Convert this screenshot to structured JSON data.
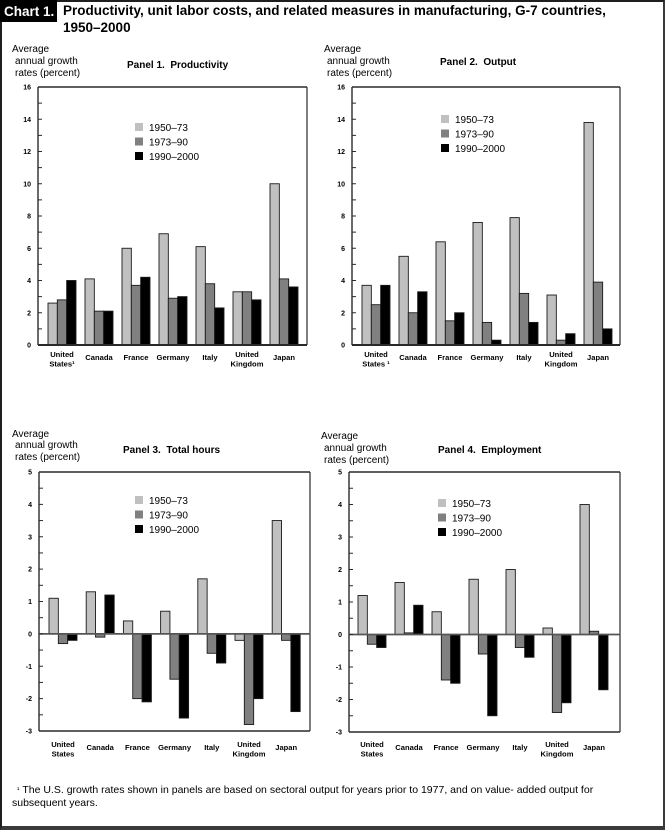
{
  "title": {
    "label": "Chart 1.",
    "text": "Productivity, unit labor costs, and related measures in manufacturing, G-7 countries, 1950–2000"
  },
  "footnote": {
    "marker": "¹",
    "text": "The U.S. growth rates shown in panels are based on sectoral output for years prior to 1977, and on value- added output for subsequent years."
  },
  "chart_data": [
    {
      "type": "bar",
      "title": "Panel 1.  Productivity",
      "xlabel": "",
      "ylabel": "Average annual growth rates (percent)",
      "ylabel_lines": [
        "Average",
        "annual growth",
        "rates (percent)"
      ],
      "categories": [
        "United States¹",
        "Canada",
        "France",
        "Germany",
        "Italy",
        "United Kingdom",
        "Japan"
      ],
      "category_lines": [
        [
          "United",
          "States¹"
        ],
        [
          "Canada"
        ],
        [
          "France"
        ],
        [
          "Germany"
        ],
        [
          "Italy"
        ],
        [
          "United",
          "Kingdom"
        ],
        [
          "Japan"
        ]
      ],
      "series": [
        {
          "name": "1950–73",
          "color": "#c0c0c0",
          "values": [
            2.6,
            4.1,
            6.0,
            6.9,
            6.1,
            3.3,
            10.0
          ]
        },
        {
          "name": "1973–90",
          "color": "#808080",
          "values": [
            2.8,
            2.1,
            3.7,
            2.9,
            3.8,
            3.3,
            4.1
          ]
        },
        {
          "name": "1990–2000",
          "color": "#000000",
          "values": [
            4.0,
            2.1,
            4.2,
            3.0,
            2.3,
            2.8,
            3.6
          ]
        }
      ],
      "ylim": [
        0,
        16
      ],
      "yticks": [
        0,
        2,
        4,
        6,
        8,
        10,
        12,
        14,
        16
      ],
      "grid": false,
      "legend": "upper-center"
    },
    {
      "type": "bar",
      "title": "Panel 2.  Output",
      "xlabel": "",
      "ylabel": "Average annual growth rates (percent)",
      "ylabel_lines": [
        "Average",
        "annual growth",
        "rates (percent)"
      ],
      "categories": [
        "United States¹",
        "Canada",
        "France",
        "Germany",
        "Italy",
        "United Kingdom",
        "Japan"
      ],
      "category_lines": [
        [
          "United",
          "States ¹"
        ],
        [
          "Canada"
        ],
        [
          "France"
        ],
        [
          "Germany"
        ],
        [
          "Italy"
        ],
        [
          "United",
          "Kingdom"
        ],
        [
          "Japan"
        ]
      ],
      "series": [
        {
          "name": "1950–73",
          "color": "#c0c0c0",
          "values": [
            3.7,
            5.5,
            6.4,
            7.6,
            7.9,
            3.1,
            13.8
          ]
        },
        {
          "name": "1973–90",
          "color": "#808080",
          "values": [
            2.5,
            2.0,
            1.5,
            1.4,
            3.2,
            0.3,
            3.9
          ]
        },
        {
          "name": "1990–2000",
          "color": "#000000",
          "values": [
            3.7,
            3.3,
            2.0,
            0.3,
            1.4,
            0.7,
            1.0
          ]
        }
      ],
      "ylim": [
        0,
        16
      ],
      "yticks": [
        0,
        2,
        4,
        6,
        8,
        10,
        12,
        14,
        16
      ],
      "grid": false,
      "legend": "upper-center"
    },
    {
      "type": "bar",
      "title": "Panel 3.  Total hours",
      "xlabel": "",
      "ylabel": "Average annual growth rates (percent)",
      "ylabel_lines": [
        "Average",
        "annual growth",
        "rates (percent)"
      ],
      "categories": [
        "United States",
        "Canada",
        "France",
        "Germany",
        "Italy",
        "United Kingdom",
        "Japan"
      ],
      "category_lines": [
        [
          "United",
          "States"
        ],
        [
          "Canada"
        ],
        [
          "France"
        ],
        [
          "Germany"
        ],
        [
          "Italy"
        ],
        [
          "United",
          "Kingdom"
        ],
        [
          "Japan"
        ]
      ],
      "series": [
        {
          "name": "1950–73",
          "color": "#c0c0c0",
          "values": [
            1.1,
            1.3,
            0.4,
            0.7,
            1.7,
            -0.2,
            3.5
          ]
        },
        {
          "name": "1973–90",
          "color": "#808080",
          "values": [
            -0.3,
            -0.1,
            -2.0,
            -1.4,
            -0.6,
            -2.8,
            -0.2
          ]
        },
        {
          "name": "1990–2000",
          "color": "#000000",
          "values": [
            -0.2,
            1.2,
            -2.1,
            -2.6,
            -0.9,
            -2.0,
            -2.4
          ]
        }
      ],
      "ylim": [
        -3,
        5
      ],
      "yticks": [
        -3,
        -2,
        -1,
        0,
        1,
        2,
        3,
        4,
        5
      ],
      "grid": false,
      "legend": "upper-center"
    },
    {
      "type": "bar",
      "title": "Panel 4.  Employment",
      "xlabel": "",
      "ylabel": "Average annual growth rates (percent)",
      "ylabel_lines": [
        "Average",
        "annual growth",
        "rates (percent)"
      ],
      "categories": [
        "United States",
        "Canada",
        "France",
        "Germany",
        "Italy",
        "United Kingdom",
        "Japan"
      ],
      "category_lines": [
        [
          "United",
          "States"
        ],
        [
          "Canada"
        ],
        [
          "France"
        ],
        [
          "Germany"
        ],
        [
          "Italy"
        ],
        [
          "United",
          "Kingdom"
        ],
        [
          "Japan"
        ]
      ],
      "series": [
        {
          "name": "1950–73",
          "color": "#c0c0c0",
          "values": [
            1.2,
            1.6,
            0.7,
            1.7,
            2.0,
            0.2,
            4.0
          ]
        },
        {
          "name": "1973–90",
          "color": "#808080",
          "values": [
            -0.3,
            0.05,
            -1.4,
            -0.6,
            -0.4,
            -2.4,
            0.1
          ]
        },
        {
          "name": "1990–2000",
          "color": "#000000",
          "values": [
            -0.4,
            0.9,
            -1.5,
            -2.5,
            -0.7,
            -2.1,
            -1.7
          ]
        }
      ],
      "ylim": [
        -3,
        5
      ],
      "yticks": [
        -3,
        -2,
        -1,
        0,
        1,
        2,
        3,
        4,
        5
      ],
      "grid": false,
      "legend": "upper-center"
    }
  ]
}
